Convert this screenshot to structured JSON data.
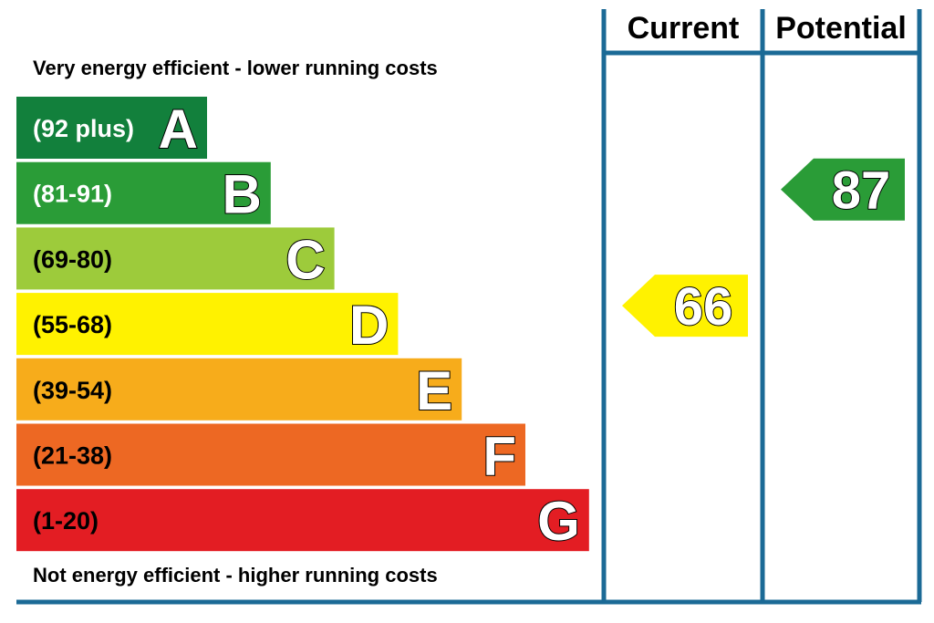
{
  "chart_data": {
    "type": "bar",
    "top_caption": "Very energy efficient - lower running costs",
    "bottom_caption": "Not energy efficient - higher running costs",
    "bands": [
      {
        "letter": "A",
        "range": "(92 plus)",
        "min": 92,
        "max": 100,
        "color": "#12803c",
        "text_color": "#ffffff"
      },
      {
        "letter": "B",
        "range": "(81-91)",
        "min": 81,
        "max": 91,
        "color": "#2a9c37",
        "text_color": "#ffffff"
      },
      {
        "letter": "C",
        "range": "(69-80)",
        "min": 69,
        "max": 80,
        "color": "#9dcb3b",
        "text_color": "#000000"
      },
      {
        "letter": "D",
        "range": "(55-68)",
        "min": 55,
        "max": 68,
        "color": "#fff200",
        "text_color": "#000000"
      },
      {
        "letter": "E",
        "range": "(39-54)",
        "min": 39,
        "max": 54,
        "color": "#f7ac1b",
        "text_color": "#000000"
      },
      {
        "letter": "F",
        "range": "(21-38)",
        "min": 21,
        "max": 38,
        "color": "#ed6823",
        "text_color": "#000000"
      },
      {
        "letter": "G",
        "range": "(1-20)",
        "min": 1,
        "max": 20,
        "color": "#e31d23",
        "text_color": "#000000"
      }
    ],
    "columns": [
      {
        "label": "Current",
        "value": "66",
        "band": "D",
        "color": "#fff200"
      },
      {
        "label": "Potential",
        "value": "87",
        "band": "B",
        "color": "#2a9c37"
      }
    ],
    "frame_color": "#1b6a96"
  }
}
